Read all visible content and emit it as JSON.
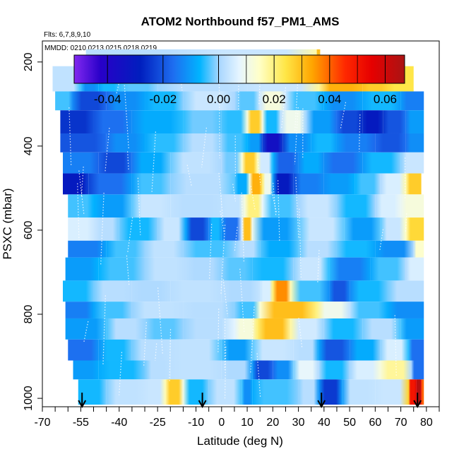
{
  "chart_data": {
    "type": "heatmap",
    "title": "ATOM2 Northbound f57_PM1_AMS",
    "flights_note": "Flts: 6,7,8,9,10",
    "dates_note": "MMDD: 0210,0213,0215,0218,0219",
    "xlabel": "Latitude (deg N)",
    "ylabel": "PSXC (mbar)",
    "xlim": [
      -70,
      85
    ],
    "ylim": [
      1020,
      150
    ],
    "x_ticks": [
      -70,
      -55,
      -40,
      -25,
      -10,
      0,
      10,
      20,
      30,
      40,
      50,
      60,
      70,
      80
    ],
    "x_minor_ticks": [
      -65,
      -60,
      -50,
      -45,
      -35,
      -30,
      -20,
      -15,
      -5,
      5,
      15,
      25,
      35,
      45,
      55,
      65,
      75,
      85
    ],
    "y_ticks": [
      200,
      400,
      600,
      800,
      1000
    ],
    "colorbar": {
      "range": [
        -0.052,
        0.067
      ],
      "ticks": [
        -0.04,
        -0.02,
        0.0,
        0.02,
        0.04,
        0.06
      ],
      "tick_labels": [
        "-0.04",
        "-0.02",
        "0.00",
        "0.02",
        "0.04",
        "0.06"
      ]
    },
    "profile_markers_lat": [
      -54.5,
      -7.5,
      39,
      76.5
    ],
    "rows": [
      {
        "p_top": 170,
        "p_bot": 210,
        "segments": [
          [
            -53,
            -10,
            0.002
          ],
          [
            -10,
            37,
            0.004
          ],
          [
            37,
            38.5,
            0.03
          ]
        ]
      },
      {
        "p_top": 210,
        "p_bot": 270,
        "segments": [
          [
            -66,
            -55,
            0.003
          ],
          [
            -55,
            -48,
            -0.012
          ],
          [
            -48,
            -40,
            -0.006
          ],
          [
            -40,
            -25,
            -0.003
          ],
          [
            -25,
            10,
            0.002
          ],
          [
            10,
            38,
            0.004
          ],
          [
            38,
            55,
            0.032
          ],
          [
            55,
            65,
            0.028
          ],
          [
            65,
            75,
            0.024
          ]
        ]
      },
      {
        "p_top": 270,
        "p_bot": 315,
        "segments": [
          [
            -65,
            -58,
            -0.004
          ],
          [
            -58,
            -45,
            -0.022
          ],
          [
            -45,
            -30,
            -0.012
          ],
          [
            -30,
            -15,
            -0.006
          ],
          [
            -15,
            5,
            0.004
          ],
          [
            5,
            15,
            -0.003
          ],
          [
            15,
            25,
            0.012
          ],
          [
            25,
            40,
            -0.004
          ],
          [
            40,
            55,
            -0.012
          ],
          [
            55,
            70,
            -0.006
          ],
          [
            70,
            79,
            -0.014
          ]
        ]
      },
      {
        "p_top": 315,
        "p_bot": 370,
        "segments": [
          [
            -63,
            -50,
            -0.025
          ],
          [
            -50,
            -35,
            -0.016
          ],
          [
            -35,
            -15,
            -0.008
          ],
          [
            -15,
            0,
            -0.002
          ],
          [
            0,
            10,
            -0.005
          ],
          [
            10,
            16,
            0.028
          ],
          [
            16,
            23,
            -0.006
          ],
          [
            23,
            33,
            0.01
          ],
          [
            33,
            45,
            -0.01
          ],
          [
            45,
            55,
            -0.022
          ],
          [
            55,
            63,
            -0.03
          ],
          [
            63,
            72,
            -0.02
          ],
          [
            72,
            79,
            -0.01
          ]
        ]
      },
      {
        "p_top": 370,
        "p_bot": 415,
        "segments": [
          [
            -63,
            -45,
            -0.02
          ],
          [
            -45,
            -30,
            -0.012
          ],
          [
            -30,
            -15,
            -0.005
          ],
          [
            -15,
            0,
            0.002
          ],
          [
            0,
            10,
            -0.004
          ],
          [
            10,
            16,
            -0.01
          ],
          [
            16,
            24,
            -0.035
          ],
          [
            24,
            35,
            -0.012
          ],
          [
            35,
            45,
            -0.006
          ],
          [
            45,
            60,
            -0.014
          ],
          [
            60,
            72,
            -0.02
          ],
          [
            72,
            79,
            -0.012
          ]
        ]
      },
      {
        "p_top": 415,
        "p_bot": 465,
        "segments": [
          [
            -62,
            -48,
            -0.014
          ],
          [
            -48,
            -35,
            -0.022
          ],
          [
            -35,
            -20,
            -0.008
          ],
          [
            -20,
            0,
            0.003
          ],
          [
            0,
            8,
            -0.002
          ],
          [
            8,
            14,
            0.028
          ],
          [
            14,
            20,
            0.005
          ],
          [
            20,
            30,
            -0.018
          ],
          [
            30,
            40,
            -0.008
          ],
          [
            40,
            55,
            -0.016
          ],
          [
            55,
            70,
            -0.006
          ],
          [
            70,
            79,
            0.004
          ]
        ]
      },
      {
        "p_top": 465,
        "p_bot": 515,
        "segments": [
          [
            -62,
            -52,
            -0.03
          ],
          [
            -52,
            -35,
            -0.016
          ],
          [
            -35,
            -20,
            -0.004
          ],
          [
            -20,
            5,
            0.002
          ],
          [
            5,
            11,
            -0.008
          ],
          [
            11,
            16,
            0.032
          ],
          [
            16,
            20,
            0.01
          ],
          [
            20,
            28,
            -0.03
          ],
          [
            28,
            40,
            -0.014
          ],
          [
            40,
            52,
            -0.01
          ],
          [
            52,
            62,
            -0.004
          ],
          [
            62,
            72,
            0.006
          ],
          [
            72,
            78,
            0.028
          ]
        ]
      },
      {
        "p_top": 515,
        "p_bot": 570,
        "segments": [
          [
            -60,
            -50,
            -0.004
          ],
          [
            -50,
            -35,
            -0.01
          ],
          [
            -35,
            -20,
            0.004
          ],
          [
            -20,
            0,
            0.002
          ],
          [
            0,
            9,
            0.003
          ],
          [
            9,
            16,
            0.02
          ],
          [
            16,
            30,
            -0.004
          ],
          [
            30,
            45,
            0.004
          ],
          [
            45,
            60,
            -0.006
          ],
          [
            60,
            70,
            0.006
          ],
          [
            70,
            79,
            0.012
          ]
        ]
      },
      {
        "p_top": 570,
        "p_bot": 625,
        "segments": [
          [
            -60,
            -50,
            0.006
          ],
          [
            -50,
            -40,
            0.002
          ],
          [
            -40,
            -25,
            -0.006
          ],
          [
            -25,
            -14,
            0.004
          ],
          [
            -14,
            -5,
            -0.022
          ],
          [
            -5,
            0,
            -0.006
          ],
          [
            0,
            8,
            -0.016
          ],
          [
            8,
            12,
            0.03
          ],
          [
            12,
            30,
            -0.01
          ],
          [
            30,
            48,
            0.004
          ],
          [
            48,
            62,
            -0.01
          ],
          [
            62,
            72,
            0.004
          ],
          [
            72,
            79,
            0.026
          ]
        ]
      },
      {
        "p_top": 625,
        "p_bot": 665,
        "segments": [
          [
            -60,
            -45,
            -0.014
          ],
          [
            -45,
            -30,
            -0.004
          ],
          [
            -30,
            -15,
            0.003
          ],
          [
            -15,
            5,
            -0.004
          ],
          [
            5,
            15,
            0.002
          ],
          [
            15,
            30,
            -0.008
          ],
          [
            30,
            45,
            0.002
          ],
          [
            45,
            60,
            -0.006
          ],
          [
            60,
            75,
            -0.012
          ],
          [
            75,
            79,
            0.014
          ]
        ]
      },
      {
        "p_top": 665,
        "p_bot": 720,
        "segments": [
          [
            -61,
            -48,
            -0.01
          ],
          [
            -48,
            -30,
            -0.004
          ],
          [
            -30,
            -14,
            0.003
          ],
          [
            -14,
            0,
            0.001
          ],
          [
            0,
            12,
            -0.003
          ],
          [
            12,
            28,
            -0.006
          ],
          [
            28,
            42,
            0.004
          ],
          [
            42,
            58,
            -0.014
          ],
          [
            58,
            72,
            -0.004
          ],
          [
            72,
            79,
            0.006
          ]
        ]
      },
      {
        "p_top": 720,
        "p_bot": 770,
        "segments": [
          [
            -62,
            -50,
            -0.006
          ],
          [
            -50,
            -35,
            0.002
          ],
          [
            -35,
            -20,
            0.001
          ],
          [
            -20,
            0,
            0.003
          ],
          [
            0,
            15,
            0.001
          ],
          [
            15,
            20,
            0.006
          ],
          [
            20,
            27,
            0.036
          ],
          [
            27,
            42,
            -0.004
          ],
          [
            42,
            50,
            -0.02
          ],
          [
            50,
            65,
            -0.006
          ],
          [
            65,
            79,
            0.002
          ]
        ]
      },
      {
        "p_top": 770,
        "p_bot": 810,
        "segments": [
          [
            -61,
            -50,
            -0.014
          ],
          [
            -50,
            -35,
            -0.004
          ],
          [
            -35,
            -15,
            0.003
          ],
          [
            -15,
            5,
            0.002
          ],
          [
            5,
            15,
            -0.004
          ],
          [
            15,
            37,
            0.03
          ],
          [
            37,
            50,
            0.01
          ],
          [
            50,
            65,
            -0.004
          ],
          [
            65,
            79,
            -0.012
          ]
        ]
      },
      {
        "p_top": 810,
        "p_bot": 860,
        "segments": [
          [
            -61,
            -45,
            -0.01
          ],
          [
            -45,
            -30,
            0.002
          ],
          [
            -30,
            -15,
            -0.003
          ],
          [
            -15,
            5,
            0.002
          ],
          [
            5,
            14,
            0.012
          ],
          [
            14,
            27,
            0.03
          ],
          [
            27,
            40,
            0.005
          ],
          [
            40,
            55,
            -0.006
          ],
          [
            55,
            70,
            0.002
          ],
          [
            70,
            79,
            -0.01
          ]
        ]
      },
      {
        "p_top": 860,
        "p_bot": 910,
        "segments": [
          [
            -60,
            -48,
            -0.016
          ],
          [
            -48,
            -35,
            -0.006
          ],
          [
            -35,
            -20,
            0.002
          ],
          [
            -20,
            0,
            0.003
          ],
          [
            0,
            12,
            -0.01
          ],
          [
            12,
            28,
            0.004
          ],
          [
            28,
            38,
            0.002
          ],
          [
            38,
            50,
            -0.02
          ],
          [
            50,
            62,
            -0.008
          ],
          [
            62,
            73,
            0.006
          ],
          [
            73,
            79,
            -0.016
          ]
        ]
      },
      {
        "p_top": 910,
        "p_bot": 955,
        "segments": [
          [
            -58,
            -48,
            -0.01
          ],
          [
            -48,
            -30,
            -0.006
          ],
          [
            -30,
            -20,
            0.002
          ],
          [
            -20,
            0,
            0.003
          ],
          [
            0,
            12,
            0.001
          ],
          [
            12,
            20,
            -0.022
          ],
          [
            20,
            28,
            -0.012
          ],
          [
            28,
            38,
            0.008
          ],
          [
            38,
            50,
            -0.006
          ],
          [
            50,
            62,
            0.006
          ],
          [
            62,
            74,
            0.018
          ],
          [
            74,
            79,
            -0.016
          ]
        ]
      },
      {
        "p_top": 955,
        "p_bot": 1015,
        "segments": [
          [
            -56,
            -45,
            -0.006
          ],
          [
            -45,
            -30,
            0.003
          ],
          [
            -30,
            -22,
            0.004
          ],
          [
            -22,
            -15,
            0.028
          ],
          [
            -15,
            -5,
            -0.006
          ],
          [
            -5,
            8,
            0.003
          ],
          [
            8,
            12,
            -0.012
          ],
          [
            12,
            30,
            -0.004
          ],
          [
            30,
            38,
            0.002
          ],
          [
            38,
            47,
            -0.024
          ],
          [
            47,
            60,
            0.003
          ],
          [
            60,
            73,
            0.004
          ],
          [
            73,
            76,
            0.05
          ],
          [
            76,
            78,
            0.065
          ],
          [
            78,
            79,
            0.04
          ]
        ]
      }
    ]
  }
}
